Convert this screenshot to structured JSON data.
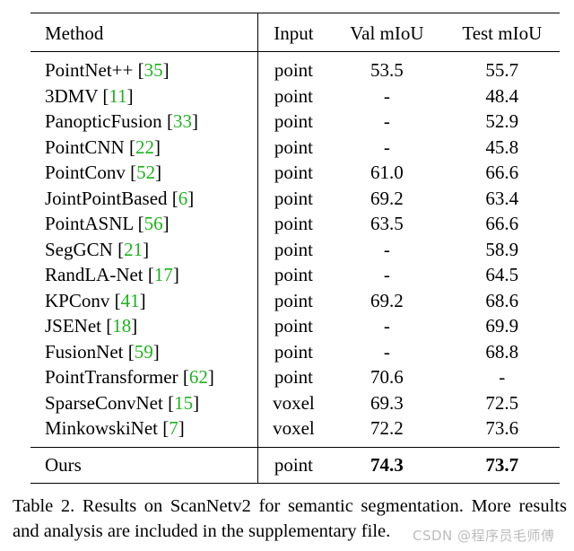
{
  "table": {
    "headers": {
      "method": "Method",
      "input": "Input",
      "val": "Val mIoU",
      "test": "Test mIoU"
    },
    "rows": [
      {
        "name": "PointNet++",
        "ref": "35",
        "input": "point",
        "val": "53.5",
        "test": "55.7"
      },
      {
        "name": "3DMV",
        "ref": "11",
        "input": "point",
        "val": "-",
        "test": "48.4"
      },
      {
        "name": "PanopticFusion",
        "ref": "33",
        "input": "point",
        "val": "-",
        "test": "52.9"
      },
      {
        "name": "PointCNN",
        "ref": "22",
        "input": "point",
        "val": "-",
        "test": "45.8"
      },
      {
        "name": "PointConv",
        "ref": "52",
        "input": "point",
        "val": "61.0",
        "test": "66.6"
      },
      {
        "name": "JointPointBased",
        "ref": "6",
        "input": "point",
        "val": "69.2",
        "test": "63.4"
      },
      {
        "name": "PointASNL",
        "ref": "56",
        "input": "point",
        "val": "63.5",
        "test": "66.6"
      },
      {
        "name": "SegGCN",
        "ref": "21",
        "input": "point",
        "val": "-",
        "test": "58.9"
      },
      {
        "name": "RandLA-Net",
        "ref": "17",
        "input": "point",
        "val": "-",
        "test": "64.5"
      },
      {
        "name": "KPConv",
        "ref": "41",
        "input": "point",
        "val": "69.2",
        "test": "68.6"
      },
      {
        "name": "JSENet",
        "ref": "18",
        "input": "point",
        "val": "-",
        "test": "69.9"
      },
      {
        "name": "FusionNet",
        "ref": "59",
        "input": "point",
        "val": "-",
        "test": "68.8"
      },
      {
        "name": "PointTransformer",
        "ref": "62",
        "input": "point",
        "val": "70.6",
        "test": "-"
      },
      {
        "name": "SparseConvNet",
        "ref": "15",
        "input": "voxel",
        "val": "69.3",
        "test": "72.5"
      },
      {
        "name": "MinkowskiNet",
        "ref": "7",
        "input": "voxel",
        "val": "72.2",
        "test": "73.6"
      }
    ],
    "ours": {
      "name": "Ours",
      "input": "point",
      "val": "74.3",
      "test": "73.7"
    }
  },
  "caption": "Table 2. Results on ScanNetv2 for semantic segmentation. More results and analysis are included in the supplementary file.",
  "watermark": "CSDN @程序员毛师傅",
  "colors": {
    "reference": "#1fb21f"
  }
}
